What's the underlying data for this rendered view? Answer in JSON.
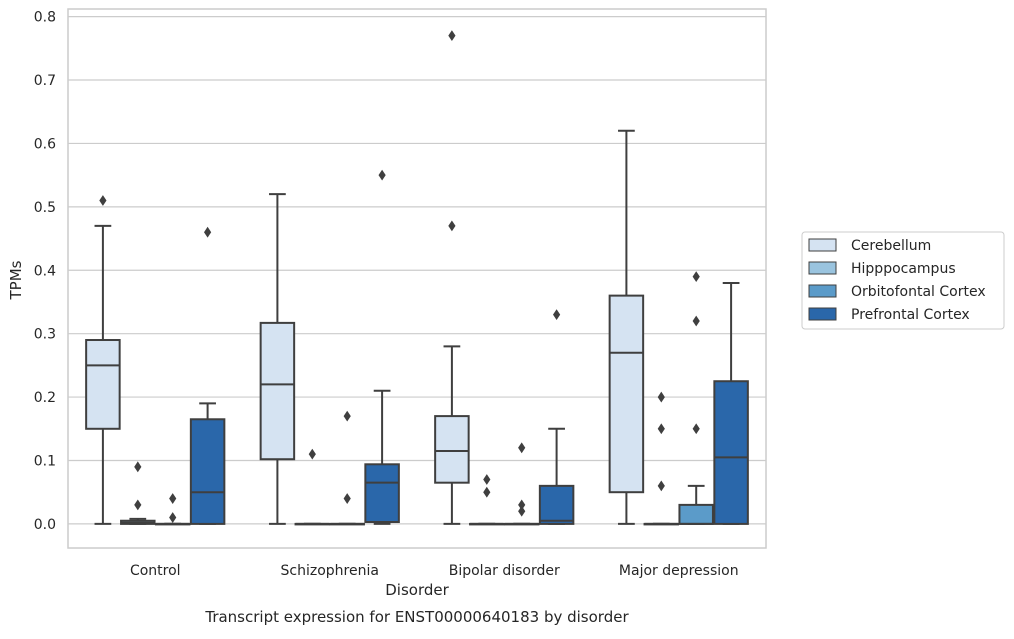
{
  "chart_data": {
    "type": "box",
    "title": "Transcript expression for ENST00000640183 by disorder",
    "xlabel": "Disorder",
    "ylabel": "TPMs",
    "ylim": [
      -0.038,
      0.812
    ],
    "yticks": [
      "0.0",
      "0.1",
      "0.2",
      "0.3",
      "0.4",
      "0.5",
      "0.6",
      "0.7",
      "0.8"
    ],
    "ytick_values": [
      0.0,
      0.1,
      0.2,
      0.3,
      0.4,
      0.5,
      0.6,
      0.7,
      0.8
    ],
    "grid": true,
    "legend_position": "right",
    "categories": [
      "Control",
      "Schizophrenia",
      "Bipolar disorder",
      "Major depression"
    ],
    "series": [
      {
        "name": "Cerebellum",
        "color": "#d5e3f2",
        "boxes": [
          {
            "whislo": 0.0,
            "q1": 0.15,
            "med": 0.25,
            "q3": 0.29,
            "whishi": 0.47,
            "fliers": [
              0.51
            ]
          },
          {
            "whislo": 0.0,
            "q1": 0.102,
            "med": 0.22,
            "q3": 0.317,
            "whishi": 0.52,
            "fliers": []
          },
          {
            "whislo": 0.0,
            "q1": 0.065,
            "med": 0.115,
            "q3": 0.17,
            "whishi": 0.28,
            "fliers": [
              0.47,
              0.77
            ]
          },
          {
            "whislo": 0.0,
            "q1": 0.05,
            "med": 0.27,
            "q3": 0.36,
            "whishi": 0.62,
            "fliers": []
          }
        ]
      },
      {
        "name": "Hipppocampus",
        "color": "#9ac4df",
        "boxes": [
          {
            "whislo": 0.0,
            "q1": 0.0,
            "med": 0.002,
            "q3": 0.005,
            "whishi": 0.008,
            "fliers": [
              0.03,
              0.09
            ]
          },
          {
            "whislo": 0.0,
            "q1": 0.0,
            "med": 0.0,
            "q3": 0.0,
            "whishi": 0.0,
            "fliers": [
              0.11
            ]
          },
          {
            "whislo": 0.0,
            "q1": 0.0,
            "med": 0.0,
            "q3": 0.0,
            "whishi": 0.0,
            "fliers": [
              0.05,
              0.07
            ]
          },
          {
            "whislo": 0.0,
            "q1": 0.0,
            "med": 0.0,
            "q3": 0.0,
            "whishi": 0.0,
            "fliers": [
              0.06,
              0.15,
              0.2
            ]
          }
        ]
      },
      {
        "name": "Orbitofontal Cortex",
        "color": "#5b9bc9",
        "boxes": [
          {
            "whislo": 0.0,
            "q1": 0.0,
            "med": 0.0,
            "q3": 0.0,
            "whishi": 0.0,
            "fliers": [
              0.01,
              0.04
            ]
          },
          {
            "whislo": 0.0,
            "q1": 0.0,
            "med": 0.0,
            "q3": 0.0,
            "whishi": 0.0,
            "fliers": [
              0.04,
              0.17
            ]
          },
          {
            "whislo": 0.0,
            "q1": 0.0,
            "med": 0.0,
            "q3": 0.0,
            "whishi": 0.0,
            "fliers": [
              0.02,
              0.03,
              0.12
            ]
          },
          {
            "whislo": 0.0,
            "q1": 0.0,
            "med": 0.0,
            "q3": 0.03,
            "whishi": 0.06,
            "fliers": [
              0.15,
              0.32,
              0.39
            ]
          }
        ]
      },
      {
        "name": "Prefrontal Cortex",
        "color": "#2a67aa",
        "boxes": [
          {
            "whislo": 0.0,
            "q1": 0.0,
            "med": 0.05,
            "q3": 0.165,
            "whishi": 0.19,
            "fliers": [
              0.46
            ]
          },
          {
            "whislo": 0.0,
            "q1": 0.003,
            "med": 0.065,
            "q3": 0.094,
            "whishi": 0.21,
            "fliers": [
              0.55
            ]
          },
          {
            "whislo": 0.0,
            "q1": 0.0,
            "med": 0.005,
            "q3": 0.06,
            "whishi": 0.15,
            "fliers": [
              0.33
            ]
          },
          {
            "whislo": 0.0,
            "q1": 0.0,
            "med": 0.105,
            "q3": 0.225,
            "whishi": 0.38,
            "fliers": []
          }
        ]
      }
    ]
  }
}
